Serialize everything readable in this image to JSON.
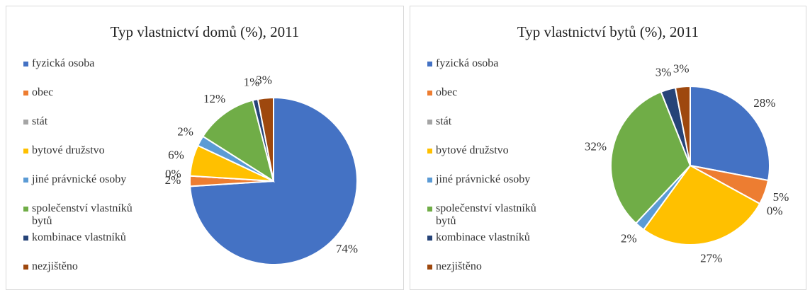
{
  "chart_data": [
    {
      "type": "pie",
      "title": "Typ  vlastnictví domů (%), 2011",
      "categories": [
        "fyzická osoba",
        "obec",
        "stát",
        "bytové družstvo",
        "jiné právnické osoby",
        "společenství vlastníků bytů",
        "kombinace vlastníků",
        "nezjištěno"
      ],
      "values": [
        74,
        2,
        0,
        6,
        2,
        12,
        1,
        3
      ],
      "value_labels": [
        "74%",
        "2%",
        "0%",
        "6%",
        "2%",
        "12%",
        "1%",
        "3%"
      ],
      "colors": [
        "#4472c4",
        "#ed7d31",
        "#a5a5a5",
        "#ffc000",
        "#5b9bd5",
        "#70ad47",
        "#264478",
        "#9e480e"
      ],
      "legend": "left"
    },
    {
      "type": "pie",
      "title": "Typ  vlastnictví bytů (%), 2011",
      "categories": [
        "fyzická osoba",
        "obec",
        "stát",
        "bytové družstvo",
        "jiné právnické osoby",
        "společenství vlastníků bytů",
        "kombinace vlastníků",
        "nezjištěno"
      ],
      "values": [
        28,
        5,
        0,
        27,
        2,
        32,
        3,
        3
      ],
      "value_labels": [
        "28%",
        "5%",
        "0%",
        "27%",
        "2%",
        "32%",
        "3%",
        "3%"
      ],
      "colors": [
        "#4472c4",
        "#ed7d31",
        "#a5a5a5",
        "#ffc000",
        "#5b9bd5",
        "#70ad47",
        "#264478",
        "#9e480e"
      ],
      "legend": "left"
    }
  ]
}
